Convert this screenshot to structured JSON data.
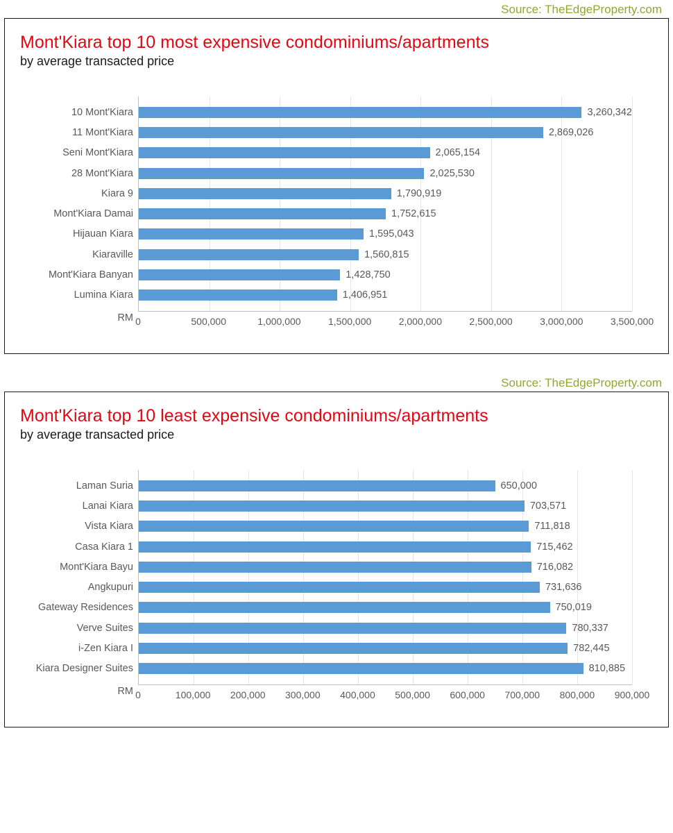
{
  "source_label": "Source: TheEdgeProperty.com",
  "source_color": "#8fa82e",
  "title_color": "#e30613",
  "bar_color": "#5b9bd5",
  "axis_text_color": "#595959",
  "grid_color": "#e6e6e6",
  "unit_label": "RM",
  "chart1": {
    "title": "Mont'Kiara top 10 most expensive condominiums/apartments",
    "subtitle": "by average transacted price",
    "type": "horizontal-bar",
    "xlim": [
      0,
      3500000
    ],
    "xtick_step": 500000,
    "xticks": [
      "0",
      "500,000",
      "1,000,000",
      "1,500,000",
      "2,000,000",
      "2,500,000",
      "3,000,000",
      "3,500,000"
    ],
    "bars": [
      {
        "label": "10 Mont'Kiara",
        "value": 3260342,
        "display": "3,260,342"
      },
      {
        "label": "11 Mont'Kiara",
        "value": 2869026,
        "display": "2,869,026"
      },
      {
        "label": "Seni Mont'Kiara",
        "value": 2065154,
        "display": "2,065,154"
      },
      {
        "label": "28 Mont'Kiara",
        "value": 2025530,
        "display": "2,025,530"
      },
      {
        "label": "Kiara 9",
        "value": 1790919,
        "display": "1,790,919"
      },
      {
        "label": "Mont'Kiara Damai",
        "value": 1752615,
        "display": "1,752,615"
      },
      {
        "label": "Hijauan Kiara",
        "value": 1595043,
        "display": "1,595,043"
      },
      {
        "label": "Kiaraville",
        "value": 1560815,
        "display": "1,560,815"
      },
      {
        "label": "Mont'Kiara Banyan",
        "value": 1428750,
        "display": "1,428,750"
      },
      {
        "label": "Lumina Kiara",
        "value": 1406951,
        "display": "1,406,951"
      }
    ]
  },
  "chart2": {
    "title": "Mont'Kiara top 10 least expensive condominiums/apartments",
    "subtitle": "by average transacted price",
    "type": "horizontal-bar",
    "xlim": [
      0,
      900000
    ],
    "xtick_step": 100000,
    "xticks": [
      "0",
      "100,000",
      "200,000",
      "300,000",
      "400,000",
      "500,000",
      "600,000",
      "700,000",
      "800,000",
      "900,000"
    ],
    "bars": [
      {
        "label": "Laman Suria",
        "value": 650000,
        "display": "650,000"
      },
      {
        "label": "Lanai Kiara",
        "value": 703571,
        "display": "703,571"
      },
      {
        "label": "Vista Kiara",
        "value": 711818,
        "display": "711,818"
      },
      {
        "label": "Casa Kiara 1",
        "value": 715462,
        "display": "715,462"
      },
      {
        "label": "Mont'Kiara Bayu",
        "value": 716082,
        "display": "716,082"
      },
      {
        "label": "Angkupuri",
        "value": 731636,
        "display": "731,636"
      },
      {
        "label": "Gateway Residences",
        "value": 750019,
        "display": "750,019"
      },
      {
        "label": "Verve Suites",
        "value": 780337,
        "display": "780,337"
      },
      {
        "label": "i-Zen Kiara I",
        "value": 782445,
        "display": "782,445"
      },
      {
        "label": "Kiara Designer Suites",
        "value": 810885,
        "display": "810,885"
      }
    ]
  }
}
